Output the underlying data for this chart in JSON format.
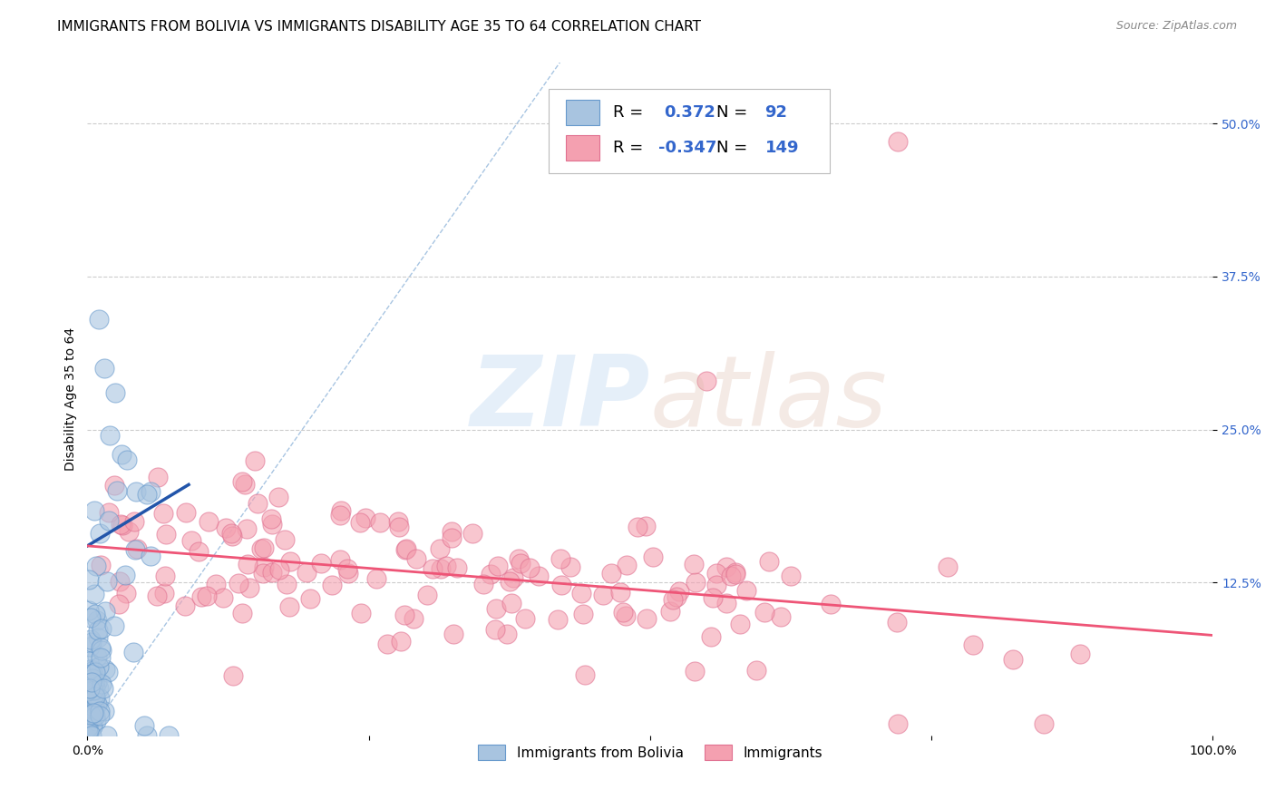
{
  "title": "IMMIGRANTS FROM BOLIVIA VS IMMIGRANTS DISABILITY AGE 35 TO 64 CORRELATION CHART",
  "source": "Source: ZipAtlas.com",
  "xlabel": "",
  "ylabel": "Disability Age 35 to 64",
  "xlim": [
    0.0,
    1.0
  ],
  "ylim": [
    0.0,
    0.55
  ],
  "blue_R": 0.372,
  "blue_N": 92,
  "pink_R": -0.347,
  "pink_N": 149,
  "blue_color": "#A8C4E0",
  "pink_color": "#F4A0B0",
  "blue_edge_color": "#6699CC",
  "pink_edge_color": "#E07090",
  "blue_trend_color": "#2255AA",
  "pink_trend_color": "#EE5577",
  "diag_color": "#99BBDD",
  "grid_color": "#CCCCCC",
  "background_color": "#FFFFFF",
  "title_fontsize": 11,
  "axis_label_fontsize": 10,
  "tick_fontsize": 10,
  "legend_fontsize": 13,
  "blue_seed": 42,
  "pink_seed": 7,
  "blue_n_points": 92,
  "pink_n_points": 149,
  "blue_trend_x0": 0.0,
  "blue_trend_y0": 0.155,
  "blue_trend_x1": 0.09,
  "blue_trend_y1": 0.205,
  "pink_trend_x0": 0.0,
  "pink_trend_y0": 0.155,
  "pink_trend_x1": 1.0,
  "pink_trend_y1": 0.082
}
